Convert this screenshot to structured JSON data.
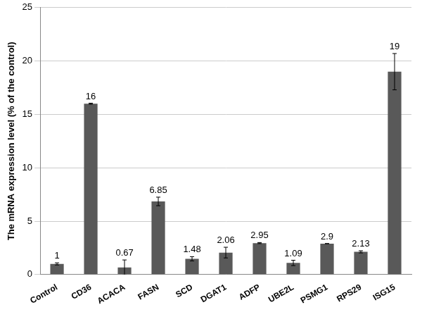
{
  "chart_data": {
    "type": "bar",
    "y_label": "The mRNA expression level (% of the control)",
    "categories": [
      "Control",
      "CD36",
      "ACACA",
      "FASN",
      "SCD",
      "DGAT1",
      "ADFP",
      "UBE2L",
      "PSMG1",
      "RPS29",
      "ISG15"
    ],
    "values": [
      1,
      16,
      0.67,
      6.85,
      1.48,
      2.06,
      2.95,
      1.09,
      2.9,
      2.13,
      19
    ],
    "error_bars": [
      0.1,
      0.05,
      0.7,
      0.4,
      0.2,
      0.5,
      0.05,
      0.25,
      0,
      0.1,
      1.7
    ],
    "color": "#595959",
    "ylim": [
      0,
      25
    ],
    "yticks": [
      0,
      5,
      10,
      15,
      20,
      25
    ],
    "grid": true,
    "data_labels": true
  }
}
